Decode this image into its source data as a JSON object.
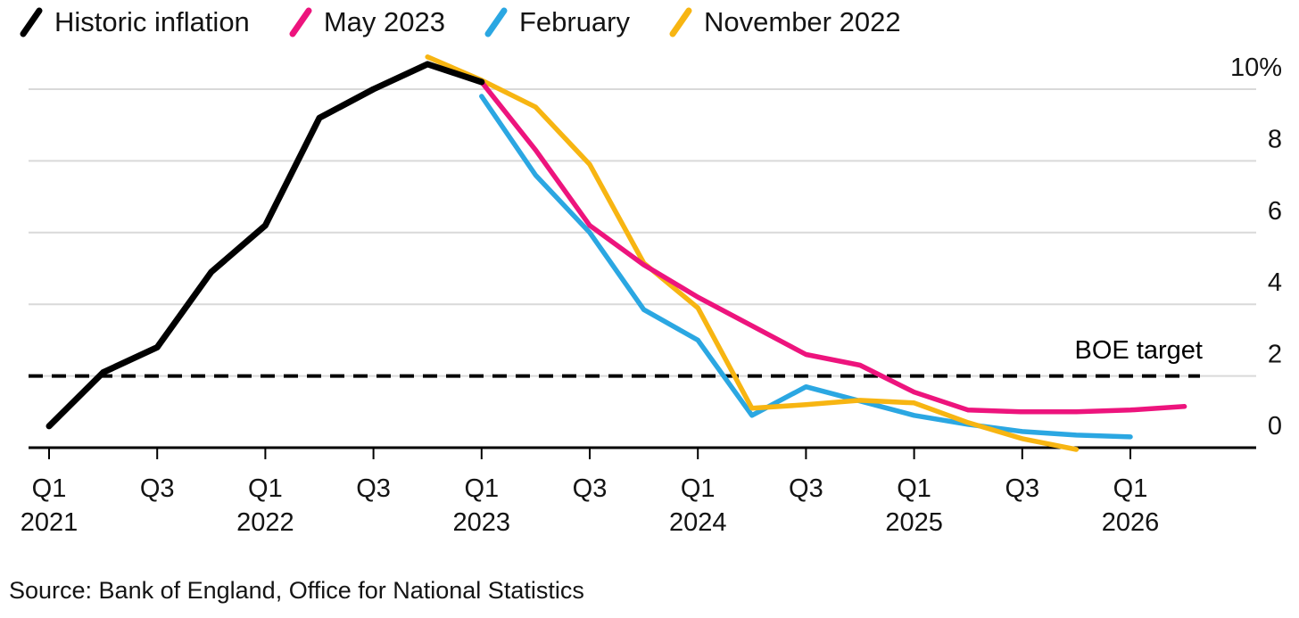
{
  "source": "Source: Bank of England, Office for National Statistics",
  "chart_data": {
    "type": "line",
    "title": "",
    "unit_suffix": "%",
    "colors": {
      "background": "#FFFFFF",
      "grid": "#D9D9D9",
      "axis": "#000000",
      "text": "#141414",
      "target_line": "#000000"
    },
    "x_axis": {
      "start": "2021Q1",
      "end": "2026Q2",
      "ticks": [
        {
          "q": 0,
          "label": "Q1",
          "year": "2021"
        },
        {
          "q": 2,
          "label": "Q3"
        },
        {
          "q": 4,
          "label": "Q1",
          "year": "2022"
        },
        {
          "q": 6,
          "label": "Q3"
        },
        {
          "q": 8,
          "label": "Q1",
          "year": "2023"
        },
        {
          "q": 10,
          "label": "Q3"
        },
        {
          "q": 12,
          "label": "Q1",
          "year": "2024"
        },
        {
          "q": 14,
          "label": "Q3"
        },
        {
          "q": 16,
          "label": "Q1",
          "year": "2025"
        },
        {
          "q": 18,
          "label": "Q3"
        },
        {
          "q": 20,
          "label": "Q1",
          "year": "2026"
        }
      ]
    },
    "y_axis": {
      "range": [
        -0.3,
        11
      ],
      "grid_on": true,
      "ticks": [
        {
          "v": 0,
          "label": "0"
        },
        {
          "v": 2,
          "label": "2"
        },
        {
          "v": 4,
          "label": "4"
        },
        {
          "v": 6,
          "label": "6"
        },
        {
          "v": 8,
          "label": "8"
        },
        {
          "v": 10,
          "label": "10%"
        }
      ]
    },
    "target_line": {
      "value": 2,
      "label": "BOE target",
      "style": "dashed"
    },
    "legend_position": "top-left",
    "series": [
      {
        "name": "Historic inflation",
        "color": "#000000",
        "start": "2021Q1",
        "values": [
          0.6,
          2.1,
          2.8,
          4.9,
          6.2,
          9.2,
          10.0,
          10.7,
          10.2
        ]
      },
      {
        "name": "May 2023",
        "color": "#ED147D",
        "start": "2023Q1",
        "values": [
          10.2,
          8.3,
          6.2,
          5.1,
          4.2,
          3.4,
          2.6,
          2.3,
          1.55,
          1.05,
          1.0,
          1.0,
          1.05,
          1.15
        ]
      },
      {
        "name": "February",
        "color": "#2BA7E2",
        "start": "2023Q1",
        "values": [
          9.8,
          7.6,
          6.0,
          3.85,
          3.0,
          0.9,
          1.7,
          1.3,
          0.9,
          0.65,
          0.45,
          0.35,
          0.3
        ]
      },
      {
        "name": "November 2022",
        "color": "#F7B512",
        "start": "2022Q4",
        "values": [
          10.9,
          10.25,
          9.5,
          7.9,
          5.15,
          3.9,
          1.1,
          1.2,
          1.32,
          1.25,
          0.7,
          0.25,
          -0.05
        ]
      }
    ]
  }
}
